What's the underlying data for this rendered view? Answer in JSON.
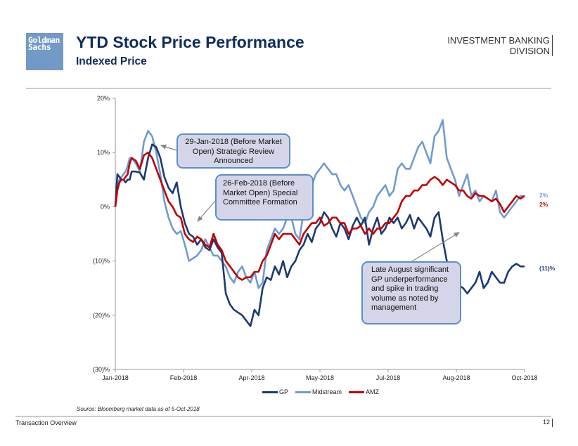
{
  "header": {
    "logo_line1": "Goldman",
    "logo_line2": "Sachs",
    "title": "YTD Stock Price Performance",
    "subtitle": "Indexed Price",
    "division_line1": "INVESTMENT BANKING",
    "division_line2": "DIVISION"
  },
  "footer": {
    "source": "Source: Bloomberg market data as of 5-Oct-2018",
    "section": "Transaction Overview",
    "page_number": "12"
  },
  "callouts": {
    "strategic_review": "29-Jan-2018 (Before Market Open) Strategic Review Announced",
    "special_committee": "26-Feb-2018 (Before Market Open) Special Committee Formation",
    "late_august": "Late August significant GP underperformance and spike in trading volume as noted by management"
  },
  "colors": {
    "gp": "#1b3a73",
    "midstream": "#6f9bd1",
    "amz": "#c00000",
    "callout_fill": "#d4d5e8",
    "callout_border": "#5b8fc6",
    "title": "#0f2d5c"
  },
  "chart_data": {
    "type": "line",
    "title": "YTD Stock Price Performance",
    "subtitle": "Indexed Price",
    "xlabel": "",
    "ylabel": "",
    "x_unit": "trading-day index (0 = Jan-2018 start, 100 = Oct-2018 tick)",
    "x_ticks": [
      "Jan-2018",
      "Feb-2018",
      "Apr-2018",
      "May-2018",
      "Jul-2018",
      "Aug-2018",
      "Oct-2018"
    ],
    "y_ticks": [
      "20%",
      "10%",
      "0%",
      "(10)%",
      "(20)%",
      "(30)%"
    ],
    "ylim": [
      -30,
      20
    ],
    "grid": false,
    "legend": "bottom-center",
    "end_labels": [
      {
        "series": "Midstream",
        "text": "2%"
      },
      {
        "series": "AMZ",
        "text": "2%"
      },
      {
        "series": "GP",
        "text": "(11)%"
      }
    ],
    "series": [
      {
        "name": "GP",
        "x": [
          0,
          0.5,
          1,
          1.5,
          2,
          2.5,
          3,
          3.5,
          4,
          5,
          6,
          7,
          8,
          9,
          10,
          11,
          12,
          13,
          14,
          15,
          16,
          17,
          18,
          19,
          20,
          21,
          22,
          23,
          24,
          25,
          26,
          27,
          28,
          29,
          30,
          31,
          32,
          33,
          34,
          35,
          36,
          37,
          38,
          39,
          40,
          41,
          42,
          43,
          44,
          45,
          46,
          47,
          48,
          49,
          50,
          51,
          52,
          53,
          54,
          55,
          56,
          57,
          58,
          59,
          60,
          61,
          62,
          63,
          64,
          65,
          66,
          67,
          68,
          69,
          70,
          71,
          72,
          73,
          74,
          75,
          76,
          77,
          78,
          79,
          80,
          81,
          82,
          83,
          84,
          85,
          86,
          87,
          88,
          89,
          90,
          91,
          92,
          93,
          94,
          95,
          96,
          97,
          98,
          99,
          100
        ],
        "values": [
          0,
          6,
          5.5,
          5,
          5,
          4.5,
          5,
          5,
          6.5,
          6.5,
          6.3,
          5,
          9,
          11.5,
          11,
          9,
          5.5,
          3.5,
          2.5,
          4.5,
          0,
          -3,
          -5,
          -5.5,
          -7,
          -6,
          -7.5,
          -8,
          -6,
          -7.5,
          -8.5,
          -16,
          -18,
          -19,
          -19.5,
          -20,
          -21,
          -22,
          -19,
          -20,
          -15,
          -13,
          -13.5,
          -11,
          -12.5,
          -10,
          -13,
          -11,
          -10,
          -8,
          -7,
          -5,
          -6.5,
          -4,
          -3,
          -1,
          -2,
          -4,
          -5.5,
          -3,
          -4,
          -6,
          -3.5,
          -2,
          -3.5,
          -2,
          -7,
          -4,
          -2,
          -5,
          -4,
          -2,
          -3,
          -2,
          -4,
          -3,
          -1.5,
          -4,
          -2,
          -3,
          -4,
          -5.5,
          -2,
          -1,
          -6,
          -10,
          -12,
          -15,
          -14.5,
          -15,
          -16,
          -15,
          -14,
          -12,
          -15,
          -14,
          -12,
          -13,
          -14,
          -14,
          -12,
          -11,
          -10.5,
          -11,
          -11
        ],
        "note": "GP series — dark navy line"
      },
      {
        "name": "Midstream",
        "x": [
          0,
          0.5,
          1,
          1.5,
          2,
          2.5,
          3,
          3.5,
          4,
          5,
          6,
          7,
          8,
          9,
          10,
          11,
          12,
          13,
          14,
          15,
          16,
          17,
          18,
          19,
          20,
          21,
          22,
          23,
          24,
          25,
          26,
          27,
          28,
          29,
          30,
          31,
          32,
          33,
          34,
          35,
          36,
          37,
          38,
          39,
          40,
          41,
          42,
          43,
          44,
          45,
          46,
          47,
          48,
          49,
          50,
          51,
          52,
          53,
          54,
          55,
          56,
          57,
          58,
          59,
          60,
          61,
          62,
          63,
          64,
          65,
          66,
          67,
          68,
          69,
          70,
          71,
          72,
          73,
          74,
          75,
          76,
          77,
          78,
          79,
          80,
          81,
          82,
          83,
          84,
          85,
          86,
          87,
          88,
          89,
          90,
          91,
          92,
          93,
          94,
          95,
          96,
          97,
          98,
          99,
          100
        ],
        "values": [
          0,
          4,
          5,
          5.5,
          6,
          6.5,
          7.5,
          9,
          9,
          8,
          6.5,
          12,
          14,
          13,
          10,
          6,
          1,
          -2,
          -4,
          -5,
          -4.5,
          -7,
          -10,
          -9.5,
          -9,
          -8,
          -6,
          -7.5,
          -9,
          -9,
          -10,
          -11,
          -13,
          -14,
          -12,
          -11,
          -13,
          -14,
          -12,
          -15,
          -14,
          -8,
          -6,
          -4,
          -5,
          -4,
          -2,
          -2,
          -5,
          -6,
          -1,
          2,
          4,
          6,
          7,
          8,
          7,
          6,
          6,
          4,
          3,
          4,
          2,
          0,
          -2,
          -3,
          -1,
          0,
          2,
          3,
          4,
          2,
          3,
          7,
          8,
          7,
          7,
          9,
          11,
          12,
          10,
          8,
          13,
          14,
          16,
          9,
          7,
          5,
          2,
          4,
          6,
          2,
          3,
          1,
          2,
          1.5,
          1,
          3,
          -1,
          -2,
          -1,
          0,
          1,
          2,
          2
        ],
        "note": "Midstream series — light blue line"
      },
      {
        "name": "AMZ",
        "x": [
          0,
          0.5,
          1,
          1.5,
          2,
          2.5,
          3,
          3.5,
          4,
          5,
          6,
          7,
          8,
          9,
          10,
          11,
          12,
          13,
          14,
          15,
          16,
          17,
          18,
          19,
          20,
          21,
          22,
          23,
          24,
          25,
          26,
          27,
          28,
          29,
          30,
          31,
          32,
          33,
          34,
          35,
          36,
          37,
          38,
          39,
          40,
          41,
          42,
          43,
          44,
          45,
          46,
          47,
          48,
          49,
          50,
          51,
          52,
          53,
          54,
          55,
          56,
          57,
          58,
          59,
          60,
          61,
          62,
          63,
          64,
          65,
          66,
          67,
          68,
          69,
          70,
          71,
          72,
          73,
          74,
          75,
          76,
          77,
          78,
          79,
          80,
          81,
          82,
          83,
          84,
          85,
          86,
          87,
          88,
          89,
          90,
          91,
          92,
          93,
          94,
          95,
          96,
          97,
          98,
          99,
          100
        ],
        "values": [
          0,
          3,
          4.5,
          5,
          5,
          5.5,
          6,
          8,
          9,
          8.5,
          7,
          9.5,
          10,
          9,
          7,
          5,
          3,
          1,
          0,
          -1.5,
          -2,
          -5,
          -6,
          -6.5,
          -5.5,
          -6,
          -7,
          -7.5,
          -5,
          -7,
          -8,
          -10,
          -11,
          -12,
          -13,
          -13.5,
          -13,
          -13,
          -12,
          -12,
          -10,
          -9,
          -7,
          -5,
          -6,
          -5,
          -5,
          -5,
          -6,
          -7,
          -5,
          -4,
          -3,
          -3,
          -2,
          -3.5,
          -3,
          -2,
          -2,
          -3,
          -3,
          -5,
          -4,
          -4,
          -3.5,
          -5,
          -4,
          -5,
          -4,
          -4,
          -3,
          -3,
          -2,
          -1,
          1,
          2,
          2,
          3,
          3,
          4,
          4,
          5,
          5.5,
          5,
          4,
          5,
          4.5,
          4,
          3,
          3,
          2,
          1.5,
          2.5,
          2,
          2,
          1.5,
          1,
          1.5,
          0.5,
          -1,
          0,
          1,
          2,
          1.5,
          2
        ],
        "note": "AMZ series — red line"
      }
    ]
  }
}
